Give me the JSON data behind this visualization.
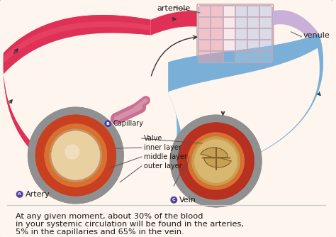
{
  "bg_color": "#fdf5ee",
  "border_color": "#e8a060",
  "artery_color": "#e03055",
  "artery_light": "#e85070",
  "artery_highlight": "#f07090",
  "vein_color": "#7ab0d8",
  "vein_light": "#9ac8e8",
  "vein_dark": "#5890b8",
  "inner_color_a": "#d4956a",
  "middle_color_a": "#c84020",
  "outer_color_a": "#909090",
  "lumen_color_a": "#e8d0a0",
  "inner_color_v": "#c8a050",
  "middle_color_v": "#b83020",
  "outer_color_v": "#909090",
  "lumen_color_v": "#d8b870",
  "valve_tan": "#c8a050",
  "valve_dark": "#806030",
  "capillary_pink": "#c87090",
  "capillary_light": "#d890a8",
  "cap_grid_color": "#c0a8b8",
  "cap_bg": "#f0e0e8",
  "text_color": "#1a1a1a",
  "label_color": "#222222",
  "line_color": "#555555",
  "arrow_color": "#333333",
  "title_arteriole": "arteriole",
  "title_venule": "venule",
  "label_A": "Artery",
  "label_B": "Capillary",
  "label_C": "Vein",
  "label_valve": "Valve",
  "label_inner": "inner layer",
  "label_middle": "middle layer",
  "label_outer": "outer layer",
  "caption_line1": "At any given moment, about 30% of the blood",
  "caption_line2": "in your systemic circulation will be found in the arteries,",
  "caption_line3": "5% in the capillaries and 65% in the vein.",
  "fs_label": 7.0,
  "fs_caption": 8.2
}
